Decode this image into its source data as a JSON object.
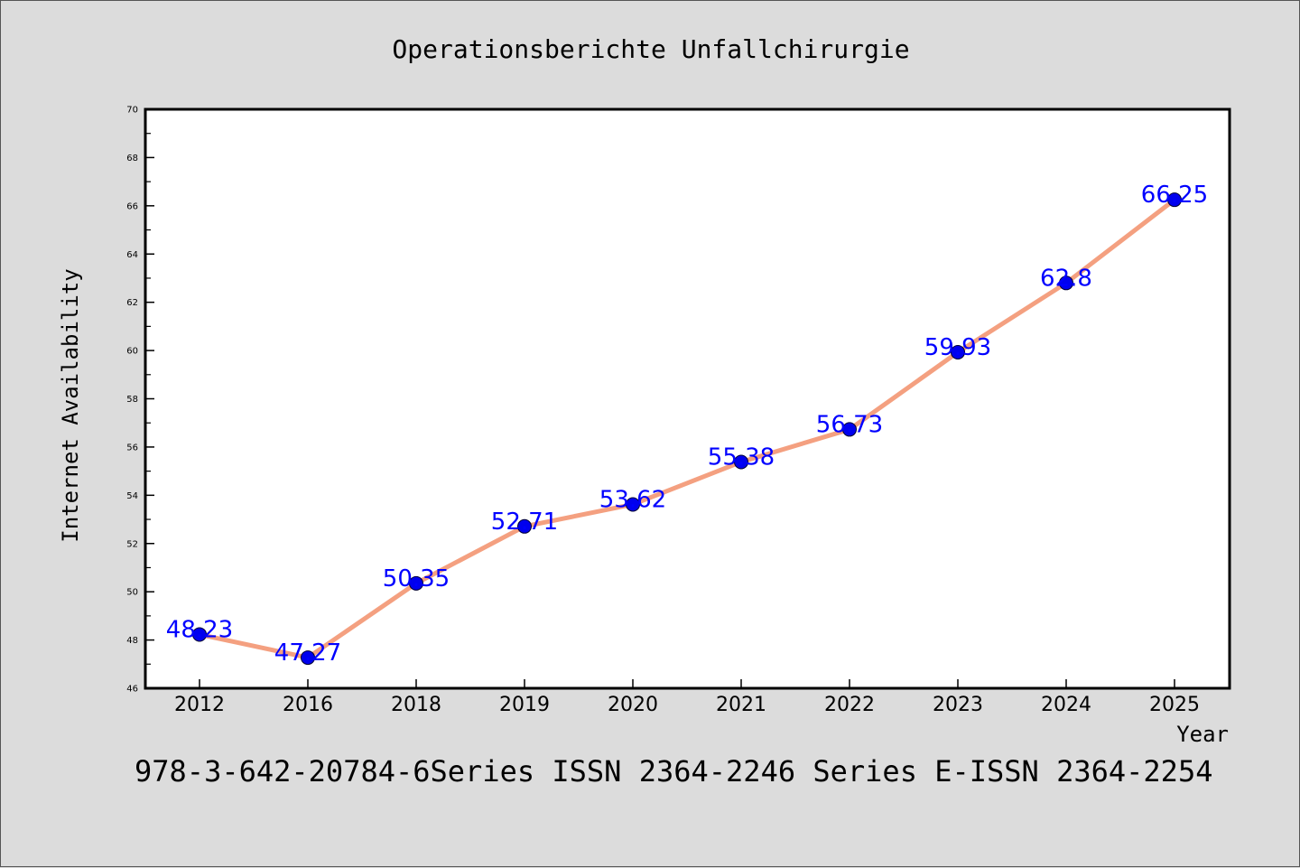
{
  "chart_data": {
    "type": "line",
    "title": "Operationsberichte Unfallchirurgie",
    "xlabel": "Year",
    "ylabel": "Internet Availability",
    "categories": [
      "2012",
      "2016",
      "2018",
      "2019",
      "2020",
      "2021",
      "2022",
      "2023",
      "2024",
      "2025"
    ],
    "series": [
      {
        "values": [
          48.23,
          47.27,
          50.35,
          52.71,
          53.62,
          55.38,
          56.73,
          59.93,
          62.8,
          66.25
        ]
      }
    ],
    "data_labels": [
      "48.23",
      "47.27",
      "50.35",
      "52.71",
      "53.62",
      "55.38",
      "56.73",
      "59.93",
      "62.8",
      "66.25"
    ],
    "ylim": [
      46,
      70
    ],
    "y_ticks": [
      "46",
      "48",
      "50",
      "52",
      "54",
      "56",
      "58",
      "60",
      "62",
      "64",
      "66",
      "68",
      "70"
    ],
    "grid": false,
    "legend": "none",
    "line_color": "#f4a080",
    "marker_color": "#0000ee",
    "label_color": "#0000ff",
    "footer": "978-3-642-20784-6Series ISSN 2364-2246 Series E-ISSN 2364-2254"
  }
}
